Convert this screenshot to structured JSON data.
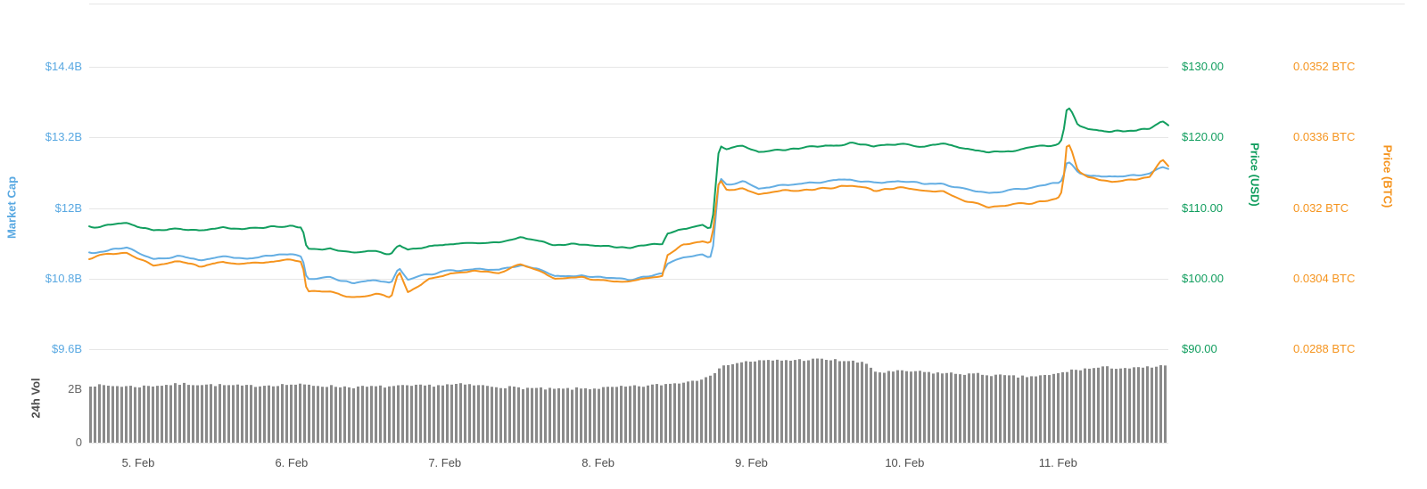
{
  "chart_data": {
    "type": "line",
    "title": "",
    "grid": true,
    "grid_color": "#e6e6e6",
    "legend": "none",
    "x_axis": {
      "unit": "date (February)",
      "color": "#4d4d4d",
      "domain": [
        4.68,
        11.72
      ],
      "ticks": [
        {
          "value": 5,
          "label": "5. Feb"
        },
        {
          "value": 6,
          "label": "6. Feb"
        },
        {
          "value": 7,
          "label": "7. Feb"
        },
        {
          "value": 8,
          "label": "8. Feb"
        },
        {
          "value": 9,
          "label": "9. Feb"
        },
        {
          "value": 10,
          "label": "10. Feb"
        },
        {
          "value": 11,
          "label": "11. Feb"
        }
      ]
    },
    "axes": {
      "market_cap": {
        "title": "Market Cap",
        "color": "#5aa9e2",
        "tick_color": "#5aa9e2",
        "side": "left",
        "range": [
          9.6,
          14.4
        ],
        "ticks": [
          {
            "value": 14.4,
            "label": "$14.4B"
          },
          {
            "value": 13.2,
            "label": "$13.2B"
          },
          {
            "value": 12.0,
            "label": "$12B"
          },
          {
            "value": 10.8,
            "label": "$10.8B"
          },
          {
            "value": 9.6,
            "label": "$9.6B"
          }
        ]
      },
      "price_usd": {
        "title": "Price (USD)",
        "color": "#129e5f",
        "tick_color": "#129e5f",
        "side": "right",
        "range": [
          90,
          130
        ],
        "ticks": [
          {
            "value": 130,
            "label": "$130.00"
          },
          {
            "value": 120,
            "label": "$120.00"
          },
          {
            "value": 110,
            "label": "$110.00"
          },
          {
            "value": 100,
            "label": "$100.00"
          },
          {
            "value": 90,
            "label": "$90.00"
          }
        ]
      },
      "price_btc": {
        "title": "Price (BTC)",
        "color": "#f5941e",
        "tick_color": "#f5941e",
        "side": "right",
        "range": [
          0.0288,
          0.0352
        ],
        "ticks": [
          {
            "value": 0.0352,
            "label": "0.0352 BTC"
          },
          {
            "value": 0.0336,
            "label": "0.0336 BTC"
          },
          {
            "value": 0.032,
            "label": "0.032 BTC"
          },
          {
            "value": 0.0304,
            "label": "0.0304 BTC"
          },
          {
            "value": 0.0288,
            "label": "0.0288 BTC"
          }
        ]
      },
      "volume": {
        "title": "24h Vol",
        "color": "#4d4d4d",
        "tick_color": "#666666",
        "side": "left",
        "range": [
          0,
          3.33
        ],
        "ticks": [
          {
            "value": 2,
            "label": "2B"
          },
          {
            "value": 0,
            "label": "0"
          }
        ]
      }
    },
    "series": [
      {
        "name": "Market Cap",
        "axis": "market_cap",
        "type": "line",
        "color": "#64aee3",
        "unit": "USD billions",
        "points": [
          [
            4.68,
            11.22
          ],
          [
            4.8,
            11.28
          ],
          [
            4.92,
            11.33
          ],
          [
            5.0,
            11.22
          ],
          [
            5.1,
            11.12
          ],
          [
            5.25,
            11.18
          ],
          [
            5.4,
            11.1
          ],
          [
            5.55,
            11.18
          ],
          [
            5.7,
            11.14
          ],
          [
            5.85,
            11.18
          ],
          [
            6.0,
            11.22
          ],
          [
            6.07,
            11.18
          ],
          [
            6.1,
            10.8
          ],
          [
            6.25,
            10.82
          ],
          [
            6.4,
            10.72
          ],
          [
            6.55,
            10.78
          ],
          [
            6.65,
            10.72
          ],
          [
            6.7,
            10.98
          ],
          [
            6.76,
            10.78
          ],
          [
            6.9,
            10.88
          ],
          [
            7.05,
            10.94
          ],
          [
            7.2,
            10.98
          ],
          [
            7.35,
            10.94
          ],
          [
            7.5,
            11.02
          ],
          [
            7.6,
            10.96
          ],
          [
            7.72,
            10.84
          ],
          [
            7.9,
            10.86
          ],
          [
            8.05,
            10.82
          ],
          [
            8.2,
            10.78
          ],
          [
            8.32,
            10.84
          ],
          [
            8.42,
            10.88
          ],
          [
            8.45,
            11.05
          ],
          [
            8.55,
            11.15
          ],
          [
            8.68,
            11.2
          ],
          [
            8.73,
            11.15
          ],
          [
            8.75,
            11.35
          ],
          [
            8.79,
            12.52
          ],
          [
            8.84,
            12.4
          ],
          [
            8.95,
            12.45
          ],
          [
            9.05,
            12.32
          ],
          [
            9.2,
            12.38
          ],
          [
            9.35,
            12.42
          ],
          [
            9.5,
            12.46
          ],
          [
            9.65,
            12.5
          ],
          [
            9.8,
            12.42
          ],
          [
            9.95,
            12.46
          ],
          [
            10.1,
            12.42
          ],
          [
            10.25,
            12.4
          ],
          [
            10.4,
            12.3
          ],
          [
            10.55,
            12.26
          ],
          [
            10.7,
            12.3
          ],
          [
            10.85,
            12.35
          ],
          [
            10.95,
            12.4
          ],
          [
            11.0,
            12.42
          ],
          [
            11.03,
            12.5
          ],
          [
            11.06,
            12.8
          ],
          [
            11.09,
            12.72
          ],
          [
            11.13,
            12.6
          ],
          [
            11.2,
            12.55
          ],
          [
            11.35,
            12.52
          ],
          [
            11.5,
            12.55
          ],
          [
            11.6,
            12.6
          ],
          [
            11.68,
            12.7
          ],
          [
            11.72,
            12.66
          ]
        ]
      },
      {
        "name": "Price (USD)",
        "axis": "price_usd",
        "type": "line",
        "color": "#129e5f",
        "unit": "USD",
        "points": [
          [
            4.68,
            107.2
          ],
          [
            4.8,
            107.6
          ],
          [
            4.92,
            107.9
          ],
          [
            5.0,
            107.2
          ],
          [
            5.1,
            106.9
          ],
          [
            5.25,
            107.1
          ],
          [
            5.4,
            106.8
          ],
          [
            5.55,
            107.2
          ],
          [
            5.7,
            107.0
          ],
          [
            5.85,
            107.3
          ],
          [
            6.0,
            107.5
          ],
          [
            6.07,
            107.2
          ],
          [
            6.1,
            104.1
          ],
          [
            6.25,
            104.3
          ],
          [
            6.4,
            103.7
          ],
          [
            6.55,
            103.9
          ],
          [
            6.65,
            103.5
          ],
          [
            6.7,
            104.9
          ],
          [
            6.76,
            103.9
          ],
          [
            6.9,
            104.6
          ],
          [
            7.05,
            104.9
          ],
          [
            7.2,
            105.1
          ],
          [
            7.35,
            105.0
          ],
          [
            7.5,
            105.9
          ],
          [
            7.6,
            105.4
          ],
          [
            7.72,
            104.7
          ],
          [
            7.9,
            104.8
          ],
          [
            8.05,
            104.5
          ],
          [
            8.2,
            104.3
          ],
          [
            8.32,
            104.7
          ],
          [
            8.42,
            104.9
          ],
          [
            8.45,
            106.3
          ],
          [
            8.55,
            107.0
          ],
          [
            8.68,
            107.4
          ],
          [
            8.73,
            106.9
          ],
          [
            8.75,
            109.0
          ],
          [
            8.79,
            119.0
          ],
          [
            8.84,
            118.3
          ],
          [
            8.95,
            118.8
          ],
          [
            9.05,
            117.9
          ],
          [
            9.2,
            118.2
          ],
          [
            9.35,
            118.5
          ],
          [
            9.5,
            118.8
          ],
          [
            9.65,
            119.2
          ],
          [
            9.8,
            118.7
          ],
          [
            9.95,
            119.0
          ],
          [
            10.1,
            118.8
          ],
          [
            10.25,
            119.1
          ],
          [
            10.4,
            118.4
          ],
          [
            10.55,
            117.9
          ],
          [
            10.7,
            118.2
          ],
          [
            10.85,
            118.6
          ],
          [
            10.95,
            118.8
          ],
          [
            11.0,
            119.0
          ],
          [
            11.03,
            120.0
          ],
          [
            11.06,
            124.5
          ],
          [
            11.09,
            123.6
          ],
          [
            11.13,
            121.8
          ],
          [
            11.2,
            121.2
          ],
          [
            11.35,
            120.8
          ],
          [
            11.5,
            120.9
          ],
          [
            11.6,
            121.2
          ],
          [
            11.68,
            122.2
          ],
          [
            11.72,
            121.7
          ]
        ]
      },
      {
        "name": "Price (BTC)",
        "axis": "price_btc",
        "type": "line",
        "color": "#f5941e",
        "unit": "BTC",
        "points": [
          [
            4.68,
            0.03085
          ],
          [
            4.8,
            0.03095
          ],
          [
            4.92,
            0.031
          ],
          [
            5.0,
            0.03085
          ],
          [
            5.1,
            0.0307
          ],
          [
            5.25,
            0.03078
          ],
          [
            5.4,
            0.03068
          ],
          [
            5.55,
            0.03078
          ],
          [
            5.7,
            0.03072
          ],
          [
            5.85,
            0.03078
          ],
          [
            6.0,
            0.03082
          ],
          [
            6.07,
            0.03076
          ],
          [
            6.1,
            0.0301
          ],
          [
            6.25,
            0.03012
          ],
          [
            6.4,
            0.02996
          ],
          [
            6.55,
            0.03005
          ],
          [
            6.65,
            0.02998
          ],
          [
            6.7,
            0.03058
          ],
          [
            6.76,
            0.03008
          ],
          [
            6.9,
            0.0304
          ],
          [
            7.05,
            0.03052
          ],
          [
            7.2,
            0.03058
          ],
          [
            7.35,
            0.03052
          ],
          [
            7.5,
            0.03072
          ],
          [
            7.6,
            0.0306
          ],
          [
            7.72,
            0.0304
          ],
          [
            7.9,
            0.03042
          ],
          [
            8.05,
            0.03036
          ],
          [
            8.2,
            0.03032
          ],
          [
            8.32,
            0.0304
          ],
          [
            8.42,
            0.03044
          ],
          [
            8.45,
            0.0309
          ],
          [
            8.55,
            0.03115
          ],
          [
            8.68,
            0.03125
          ],
          [
            8.73,
            0.03118
          ],
          [
            8.75,
            0.0315
          ],
          [
            8.79,
            0.03268
          ],
          [
            8.84,
            0.0324
          ],
          [
            8.95,
            0.03245
          ],
          [
            9.05,
            0.0323
          ],
          [
            9.2,
            0.03238
          ],
          [
            9.35,
            0.03242
          ],
          [
            9.5,
            0.03246
          ],
          [
            9.65,
            0.03252
          ],
          [
            9.8,
            0.0324
          ],
          [
            9.95,
            0.03246
          ],
          [
            10.1,
            0.0324
          ],
          [
            10.25,
            0.03236
          ],
          [
            10.4,
            0.03214
          ],
          [
            10.55,
            0.032
          ],
          [
            10.7,
            0.03206
          ],
          [
            10.85,
            0.03212
          ],
          [
            10.95,
            0.0322
          ],
          [
            11.0,
            0.03224
          ],
          [
            11.03,
            0.0324
          ],
          [
            11.06,
            0.03352
          ],
          [
            11.09,
            0.0333
          ],
          [
            11.13,
            0.03285
          ],
          [
            11.2,
            0.03268
          ],
          [
            11.35,
            0.0326
          ],
          [
            11.5,
            0.03264
          ],
          [
            11.6,
            0.03272
          ],
          [
            11.68,
            0.0331
          ],
          [
            11.72,
            0.03298
          ]
        ]
      },
      {
        "name": "24h Vol",
        "axis": "volume",
        "type": "bar",
        "color": "#8a8a8a",
        "unit": "USD billions",
        "points": [
          [
            4.68,
            2.15
          ],
          [
            5.0,
            2.1
          ],
          [
            5.3,
            2.2
          ],
          [
            5.7,
            2.12
          ],
          [
            6.0,
            2.18
          ],
          [
            6.4,
            2.08
          ],
          [
            6.8,
            2.12
          ],
          [
            7.1,
            2.18
          ],
          [
            7.4,
            2.08
          ],
          [
            7.7,
            2.0
          ],
          [
            8.0,
            2.04
          ],
          [
            8.3,
            2.12
          ],
          [
            8.5,
            2.22
          ],
          [
            8.65,
            2.35
          ],
          [
            8.75,
            2.6
          ],
          [
            8.85,
            2.95
          ],
          [
            9.0,
            3.05
          ],
          [
            9.2,
            3.08
          ],
          [
            9.45,
            3.12
          ],
          [
            9.65,
            3.05
          ],
          [
            9.75,
            2.95
          ],
          [
            9.82,
            2.62
          ],
          [
            10.0,
            2.68
          ],
          [
            10.25,
            2.6
          ],
          [
            10.5,
            2.56
          ],
          [
            10.75,
            2.46
          ],
          [
            10.95,
            2.52
          ],
          [
            11.1,
            2.72
          ],
          [
            11.3,
            2.82
          ],
          [
            11.5,
            2.78
          ],
          [
            11.72,
            2.88
          ]
        ]
      }
    ]
  }
}
